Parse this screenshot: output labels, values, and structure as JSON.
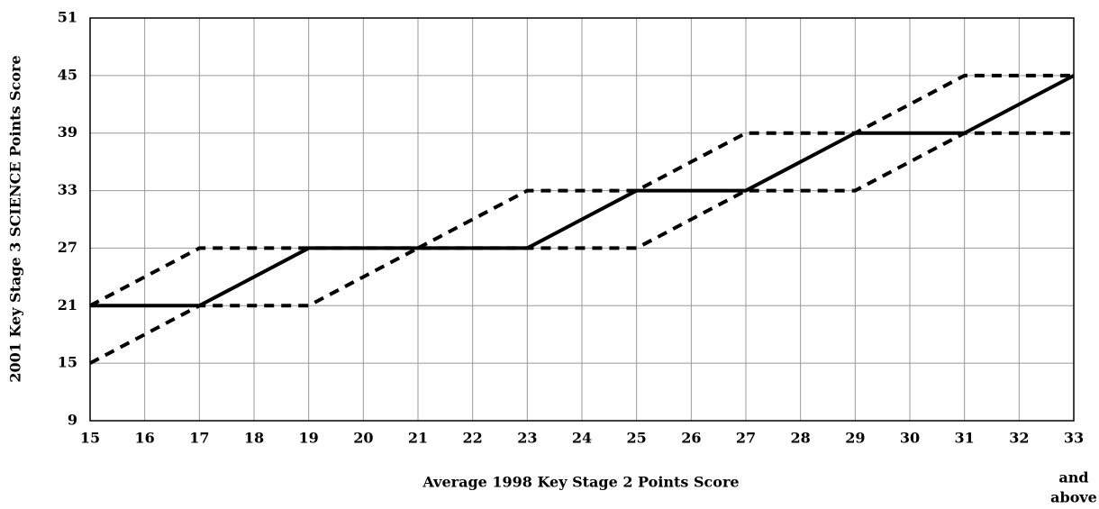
{
  "chart_data": {
    "type": "line",
    "x_label": "Average 1998 Key Stage 2 Points Score",
    "y_label": "2001 Key Stage 3 SCIENCE Points Score",
    "annotations": [
      "and",
      "above"
    ],
    "x": [
      15,
      17,
      19,
      21,
      23,
      25,
      27,
      29,
      31,
      33
    ],
    "series": [
      {
        "color": "#000000",
        "style": "solid",
        "values": [
          21,
          21,
          27,
          27,
          27,
          33,
          33,
          39,
          39,
          45
        ]
      },
      {
        "color": "#000000",
        "style": "dashed",
        "values": [
          21,
          27,
          27,
          27,
          33,
          33,
          39,
          39,
          45,
          45
        ]
      },
      {
        "color": "#000000",
        "style": "dashed",
        "values": [
          15,
          21,
          21,
          27,
          27,
          27,
          33,
          33,
          39,
          39
        ]
      }
    ],
    "xlim": [
      15,
      33
    ],
    "xticks": [
      15,
      16,
      17,
      18,
      19,
      20,
      21,
      22,
      23,
      24,
      25,
      26,
      27,
      28,
      29,
      30,
      31,
      32,
      33
    ],
    "ylim": [
      9,
      51
    ],
    "yticks": [
      9,
      15,
      21,
      27,
      33,
      39,
      45,
      51
    ],
    "grid": true
  }
}
